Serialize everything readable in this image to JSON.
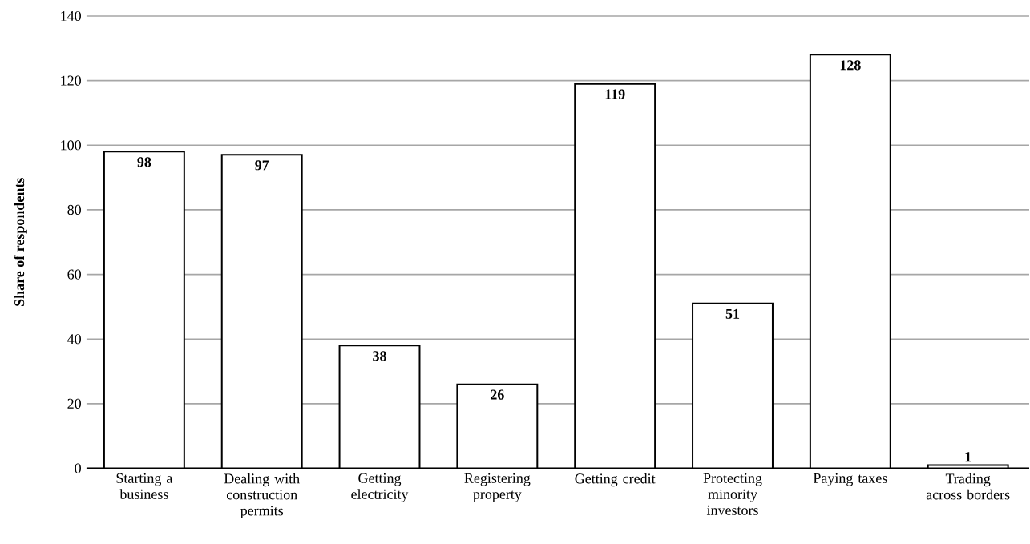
{
  "chart_data": {
    "type": "bar",
    "ylabel": "Share of respondents",
    "categories": [
      "Starting a business",
      "Dealing with construction permits",
      "Getting electricity",
      "Registering property",
      "Getting credit",
      "Protecting minority investors",
      "Paying taxes",
      "Trading across borders"
    ],
    "values": [
      98,
      97,
      38,
      26,
      119,
      51,
      128,
      1
    ],
    "color": "#ffffff",
    "ylim": [
      0,
      140
    ],
    "yticks": [
      0,
      20,
      40,
      60,
      80,
      100,
      120,
      140
    ],
    "grid": "y",
    "data_labels": true
  }
}
